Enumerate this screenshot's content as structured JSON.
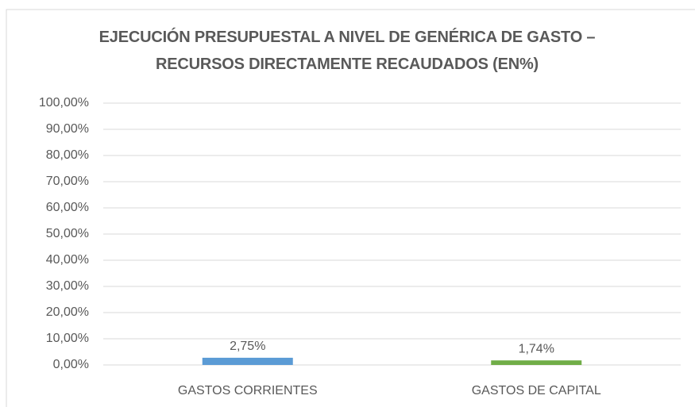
{
  "chart_data": {
    "type": "bar",
    "title": "EJECUCIÓN PRESUPUESTAL A NIVEL DE GENÉRICA DE GASTO – RECURSOS DIRECTAMENTE RECAUDADOS (EN%)",
    "categories": [
      "GASTOS CORRIENTES",
      "GASTOS DE CAPITAL"
    ],
    "values": [
      2.75,
      1.74
    ],
    "value_labels": [
      "2,75%",
      "1,74%"
    ],
    "colors": [
      "#5b9bd5",
      "#70ad47"
    ],
    "ylim": [
      0,
      100
    ],
    "yticks": [
      {
        "value": 0,
        "label": "0,00%"
      },
      {
        "value": 10,
        "label": "10,00%"
      },
      {
        "value": 20,
        "label": "20,00%"
      },
      {
        "value": 30,
        "label": "30,00%"
      },
      {
        "value": 40,
        "label": "40,00%"
      },
      {
        "value": 50,
        "label": "50,00%"
      },
      {
        "value": 60,
        "label": "60,00%"
      },
      {
        "value": 70,
        "label": "70,00%"
      },
      {
        "value": 80,
        "label": "80,00%"
      },
      {
        "value": 90,
        "label": "90,00%"
      },
      {
        "value": 100,
        "label": "100,00%"
      }
    ],
    "grid": true
  }
}
